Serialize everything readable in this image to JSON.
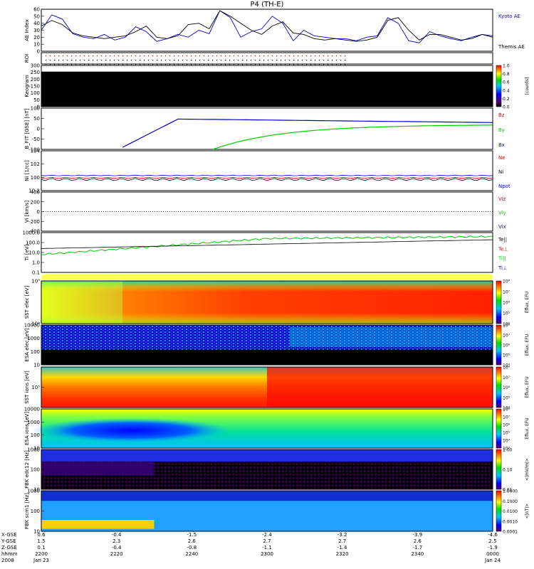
{
  "title": "P4 (TH-E)",
  "colors": {
    "blue": "#0000cc",
    "red": "#cc0000",
    "green": "#00cc00",
    "black": "#000000"
  },
  "chart_data": [
    {
      "type": "line",
      "ylabel": "AE Index",
      "ylim": [
        0,
        60
      ],
      "yticks": [
        "0",
        "10",
        "20",
        "30",
        "40",
        "50",
        "60"
      ],
      "series": [
        {
          "name": "Kyoto AE",
          "color": "#0000cc",
          "values": [
            30,
            52,
            46,
            25,
            20,
            18,
            24,
            16,
            20,
            35,
            28,
            14,
            18,
            24,
            20,
            30,
            25,
            58,
            48,
            20,
            28,
            32,
            50,
            40,
            15,
            30,
            22,
            20,
            18,
            18,
            15,
            20,
            22,
            48,
            40,
            15,
            12,
            28,
            22,
            18,
            15,
            20,
            24,
            22
          ]
        },
        {
          "name": "Themis AE",
          "color": "#000000",
          "values": [
            36,
            44,
            38,
            26,
            22,
            20,
            18,
            20,
            22,
            28,
            36,
            20,
            18,
            22,
            38,
            40,
            32,
            58,
            50,
            40,
            30,
            24,
            36,
            42,
            26,
            24,
            18,
            16,
            18,
            16,
            14,
            16,
            20,
            44,
            48,
            30,
            16,
            24,
            24,
            20,
            16,
            18,
            24,
            20
          ]
        }
      ]
    },
    {
      "type": "scatter",
      "ylabel": "ROI",
      "yticks": [],
      "rows": 3
    },
    {
      "type": "heatmap",
      "ylabel": "Keogram",
      "ylim": [
        0,
        300
      ],
      "yticks": [
        "0",
        "50",
        "100",
        "150",
        "200",
        "250",
        "300"
      ],
      "colorbar": {
        "label": "[counts]",
        "ticks": [
          "0.0",
          "0.2",
          "0.4",
          "0.6",
          "0.8",
          "1.0"
        ]
      }
    },
    {
      "type": "line",
      "ylabel": "B_FIT [GSE] [nT]",
      "ylim": [
        -100,
        100
      ],
      "yticks": [
        "-100",
        "-50",
        "0",
        "50",
        "100"
      ],
      "series": [
        {
          "name": "Bz",
          "color": "#cc0000",
          "values": []
        },
        {
          "name": "By",
          "color": "#00cc00",
          "values": []
        },
        {
          "name": "Bx",
          "color": "#0000cc",
          "values": []
        }
      ]
    },
    {
      "type": "line",
      "ylabel": "Ni [1/cc]",
      "yticks": [
        "10-2",
        "100",
        "102",
        "104"
      ],
      "series": [
        {
          "name": "Ne",
          "color": "#cc0000"
        },
        {
          "name": "Ni",
          "color": "#000000"
        },
        {
          "name": "Npot",
          "color": "#0000cc"
        }
      ]
    },
    {
      "type": "line",
      "ylabel": "Vi [km/s]",
      "ylim": [
        -400,
        400
      ],
      "yticks": [
        "-400",
        "-200",
        "0",
        "200",
        "400"
      ],
      "series": [
        {
          "name": "Viz",
          "color": "#cc0000"
        },
        {
          "name": "Viy",
          "color": "#00cc00"
        },
        {
          "name": "Vix",
          "color": "#0000cc"
        }
      ]
    },
    {
      "type": "line",
      "ylabel": "Ti [eV]",
      "yticks": [
        "0.1",
        "1.0",
        "10.0",
        "100.0",
        "1000.0"
      ],
      "series": [
        {
          "name": "Te||",
          "color": "#000000"
        },
        {
          "name": "Te⊥",
          "color": "#cc0000"
        },
        {
          "name": "Ti||",
          "color": "#00cc00"
        },
        {
          "name": "Ti⊥",
          "color": "#0000cc"
        }
      ]
    },
    {
      "type": "heatmap",
      "ylabel": "SST elec [eV]",
      "yticks": [
        "10⁴",
        "10⁵"
      ],
      "colorbar": {
        "label": "Eflux, EFU",
        "ticks": [
          "10⁴",
          "10⁵",
          "10⁶",
          "10⁷",
          "10⁸"
        ]
      }
    },
    {
      "type": "heatmap",
      "ylabel": "ESA elec [eV]",
      "yticks": [
        "10",
        "100",
        "1000",
        "10000"
      ],
      "colorbar": {
        "label": "Eflux, EFU",
        "ticks": [
          "10⁴",
          "10⁵",
          "10⁶",
          "10⁷",
          "10⁸"
        ]
      }
    },
    {
      "type": "heatmap",
      "ylabel": "SST ions [eV]",
      "yticks": [
        "10⁵"
      ],
      "colorbar": {
        "label": "Eflux, EFU",
        "ticks": [
          "10⁴",
          "10⁵",
          "10⁶",
          "10⁷",
          "10⁸"
        ]
      }
    },
    {
      "type": "heatmap",
      "ylabel": "ESA ions [eV]",
      "yticks": [
        "10",
        "100",
        "1000",
        "10000"
      ],
      "colorbar": {
        "label": "Eflux, EFU",
        "ticks": [
          "10³",
          "10⁴",
          "10⁵",
          "10⁶",
          "10⁷",
          "10⁸"
        ]
      }
    },
    {
      "type": "heatmap",
      "ylabel": "FBK edc12 [Hz]",
      "yticks": [
        "10",
        "100",
        "1000"
      ],
      "colorbar": {
        "label": "<|mV/m|>",
        "ticks": [
          "0.01",
          "0.10",
          "1.00"
        ]
      }
    },
    {
      "type": "heatmap",
      "ylabel": "FBK scm1 [Hz]",
      "yticks": [
        "10",
        "100",
        "1000"
      ],
      "colorbar": {
        "label": "<|nT|>",
        "ticks": [
          "0.0001",
          "0.0010",
          "0.0100",
          "0.1000",
          "1.0000"
        ]
      }
    }
  ],
  "axis_labels": [
    {
      "row_label": "X-GSE",
      "values": [
        "0.6",
        "-0.4",
        "-1.5",
        "-2.4",
        "-3.2",
        "-3.9",
        "-4.6"
      ]
    },
    {
      "row_label": "Y-GSE",
      "values": [
        "1.5",
        "2.3",
        "2.6",
        "2.7",
        "2.7",
        "2.6",
        "2.5"
      ]
    },
    {
      "row_label": "Z-GSE",
      "values": [
        "0.1",
        "-0.4",
        "-0.8",
        "-1.1",
        "-1.4",
        "-1.7",
        "-1.9"
      ]
    },
    {
      "row_label": "hhmm",
      "values": [
        "2200",
        "2220",
        "2240",
        "2300",
        "2320",
        "2340",
        "0000"
      ]
    },
    {
      "row_label": "2008",
      "values": [
        "Jan 23",
        "",
        "",
        "",
        "",
        "",
        "Jan 24"
      ]
    }
  ]
}
